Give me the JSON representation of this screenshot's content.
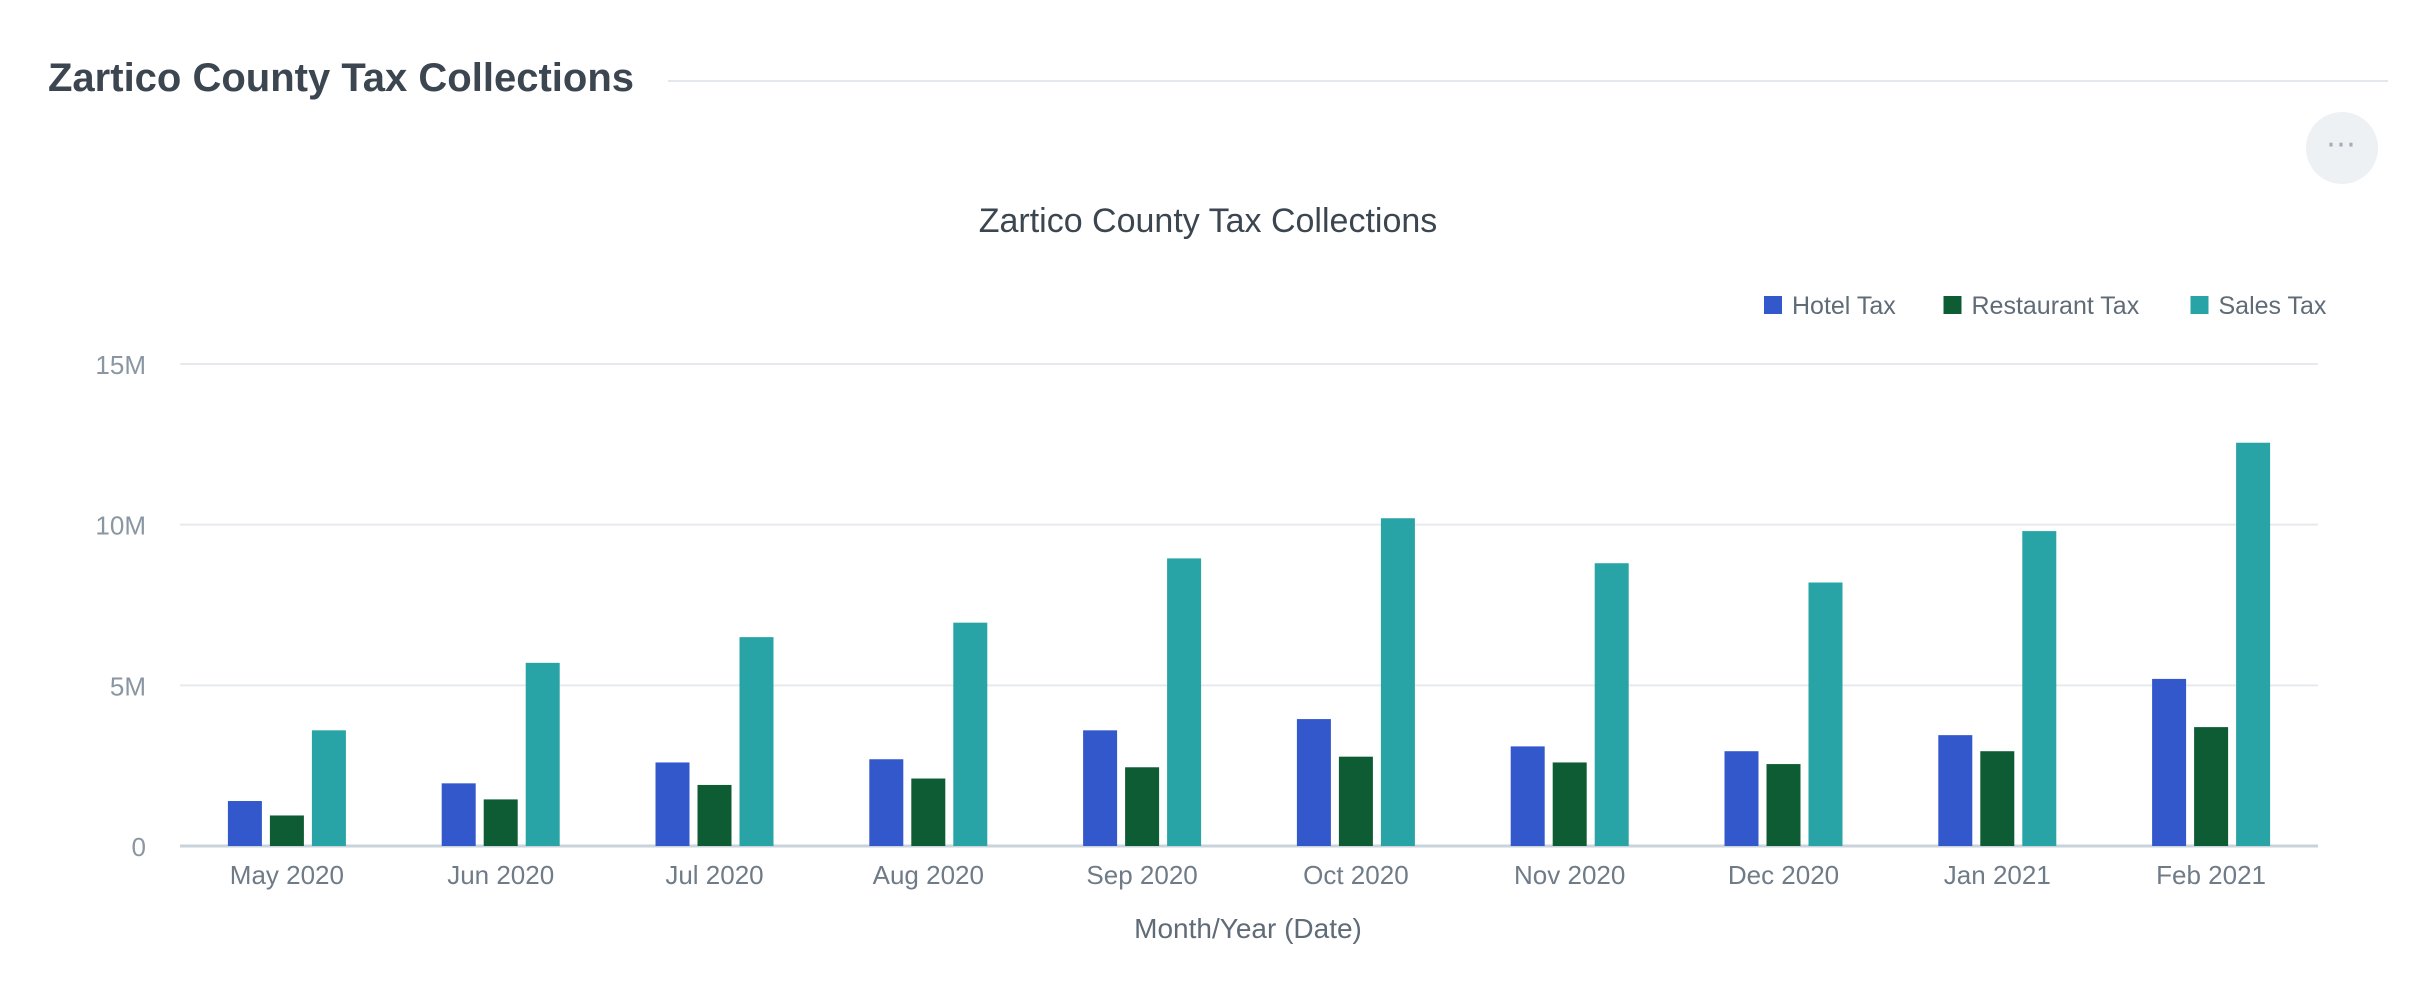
{
  "header": {
    "title": "Zartico County Tax Collections"
  },
  "menu": {
    "icon": "more-dots-icon",
    "label": "⋯"
  },
  "chart_data": {
    "type": "bar",
    "title": "Zartico County Tax Collections",
    "xlabel": "Month/Year (Date)",
    "ylabel": "",
    "ylim": [
      0,
      15000000
    ],
    "yticks": [
      {
        "value": 0,
        "label": "0"
      },
      {
        "value": 5000000,
        "label": "5M"
      },
      {
        "value": 10000000,
        "label": "10M"
      },
      {
        "value": 15000000,
        "label": "15M"
      }
    ],
    "grid": true,
    "legend_position": "top-right",
    "categories": [
      "May 2020",
      "Jun 2020",
      "Jul 2020",
      "Aug 2020",
      "Sep 2020",
      "Oct 2020",
      "Nov 2020",
      "Dec 2020",
      "Jan 2021",
      "Feb 2021"
    ],
    "series": [
      {
        "name": "Hotel Tax",
        "color": "#3358cc",
        "values": [
          1400000,
          1950000,
          2600000,
          2700000,
          3600000,
          3950000,
          3100000,
          2950000,
          3450000,
          5200000
        ]
      },
      {
        "name": "Restaurant Tax",
        "color": "#0e5c34",
        "values": [
          950000,
          1450000,
          1900000,
          2100000,
          2450000,
          2780000,
          2600000,
          2550000,
          2950000,
          3700000
        ]
      },
      {
        "name": "Sales Tax",
        "color": "#28a4a6",
        "values": [
          3600000,
          5700000,
          6500000,
          6950000,
          8950000,
          10200000,
          8800000,
          8200000,
          9800000,
          12550000
        ]
      }
    ]
  }
}
